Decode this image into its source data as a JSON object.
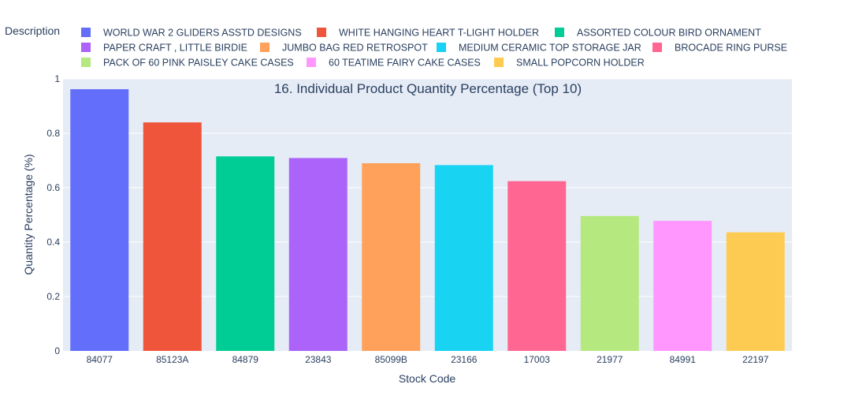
{
  "chart_data": {
    "type": "bar",
    "title": "16. Individual Product Quantity Percentage (Top 10)",
    "xlabel": "Stock Code",
    "ylabel": "Quantity Percentage (%)",
    "legend_title": "Description",
    "legend_position": "top",
    "ylim": [
      0,
      1
    ],
    "yticks": [
      "0",
      "0.2",
      "0.4",
      "0.6",
      "0.8",
      "1"
    ],
    "grid": true,
    "series": [
      {
        "name": "WORLD WAR 2 GLIDERS ASSTD DESIGNS",
        "category": "84077",
        "value": 0.962,
        "color": "#636efa"
      },
      {
        "name": "WHITE HANGING HEART T-LIGHT HOLDER",
        "category": "85123A",
        "value": 0.84,
        "color": "#EF553B"
      },
      {
        "name": "ASSORTED COLOUR BIRD ORNAMENT",
        "category": "84879",
        "value": 0.715,
        "color": "#00cc96"
      },
      {
        "name": "PAPER CRAFT , LITTLE BIRDIE",
        "category": "23843",
        "value": 0.709,
        "color": "#ab63fa"
      },
      {
        "name": "JUMBO BAG RED RETROSPOT",
        "category": "85099B",
        "value": 0.69,
        "color": "#FFA15A"
      },
      {
        "name": "MEDIUM CERAMIC TOP STORAGE JAR",
        "category": "23166",
        "value": 0.683,
        "color": "#19d3f3"
      },
      {
        "name": "BROCADE RING PURSE",
        "category": "17003",
        "value": 0.624,
        "color": "#FF6692"
      },
      {
        "name": "PACK OF 60 PINK PAISLEY CAKE CASES",
        "category": "21977",
        "value": 0.496,
        "color": "#B6E880"
      },
      {
        "name": "60 TEATIME FAIRY CAKE CASES",
        "category": "84991",
        "value": 0.478,
        "color": "#FF97FF"
      },
      {
        "name": "SMALL POPCORN HOLDER",
        "category": "22197",
        "value": 0.436,
        "color": "#FECB52"
      }
    ]
  }
}
